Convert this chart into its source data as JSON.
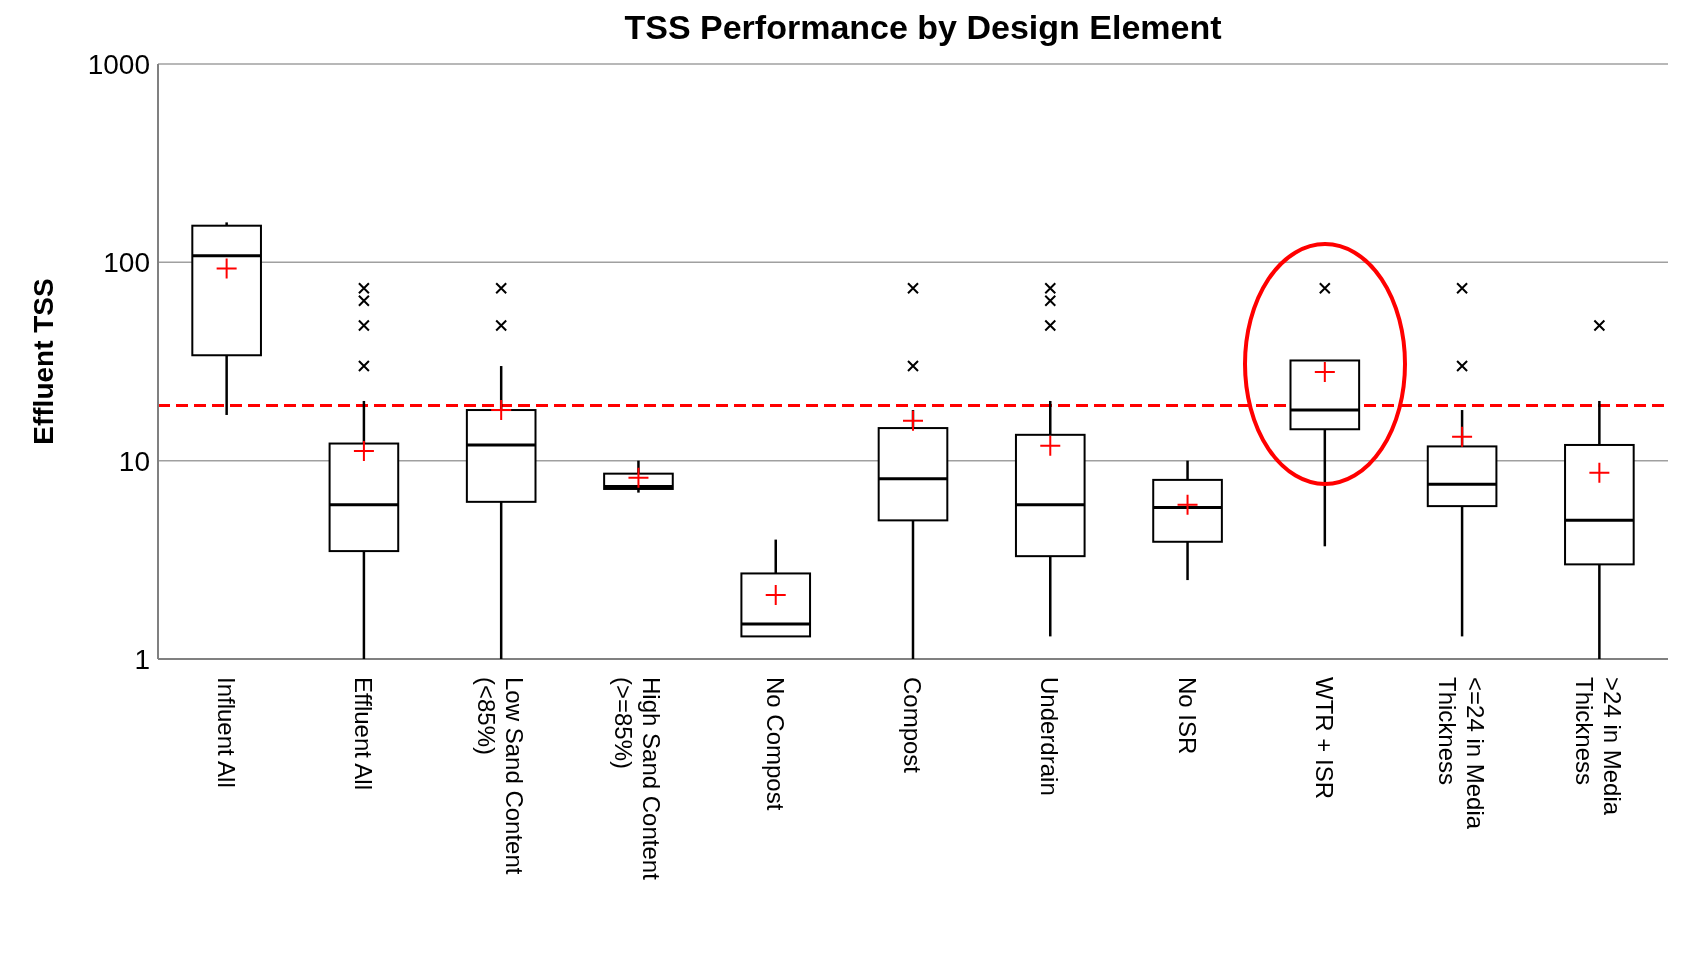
{
  "chart_data": {
    "type": "box",
    "title": "TSS Performance by Design Element",
    "ylabel": "Effluent TSS",
    "categories": [
      "Influent All",
      "Effluent All",
      "Low Sand Content (<85%)",
      "High Sand Content (>=85%)",
      "No Compost",
      "Compost",
      "Underdrain",
      "No ISR",
      "WTR + ISR",
      "<=24 in Media Thickness",
      ">24 in Media Thickness"
    ],
    "color": "#000000",
    "boxes": [
      {
        "low": 17,
        "q1": 34,
        "median": 108,
        "q3": 153,
        "high": 159,
        "mean": 93
      },
      {
        "low": 1,
        "q1": 3.5,
        "median": 6,
        "q3": 12.2,
        "high": 20,
        "mean": 11.2,
        "outliers": [
          30,
          48,
          64,
          74
        ]
      },
      {
        "low": 1,
        "q1": 6.2,
        "median": 12,
        "q3": 18,
        "high": 30,
        "mean": 18,
        "outliers": [
          48,
          74
        ]
      },
      {
        "low": 6.9,
        "q1": 7.2,
        "median": 7.4,
        "q3": 8.6,
        "high": 10,
        "mean": 8.2
      },
      {
        "low": 1.3,
        "q1": 1.3,
        "median": 1.5,
        "q3": 2.7,
        "high": 4,
        "mean": 2.1
      },
      {
        "low": 1,
        "q1": 5,
        "median": 8.1,
        "q3": 14.6,
        "high": 18,
        "mean": 15.9,
        "outliers": [
          30,
          74
        ]
      },
      {
        "low": 1.3,
        "q1": 3.3,
        "median": 6,
        "q3": 13.5,
        "high": 20,
        "mean": 11.9,
        "outliers": [
          48,
          64,
          74
        ]
      },
      {
        "low": 2.5,
        "q1": 3.9,
        "median": 5.8,
        "q3": 8,
        "high": 10,
        "mean": 6
      },
      {
        "low": 3.7,
        "q1": 14.4,
        "median": 18,
        "q3": 32,
        "high": 32,
        "mean": 28,
        "outliers": [
          74
        ]
      },
      {
        "low": 1.3,
        "q1": 5.9,
        "median": 7.6,
        "q3": 11.8,
        "high": 18,
        "mean": 13.2,
        "outliers": [
          30,
          74
        ]
      },
      {
        "low": 1,
        "q1": 3,
        "median": 5,
        "q3": 12,
        "high": 20,
        "mean": 8.7,
        "outliers": [
          48
        ]
      }
    ],
    "ylim": [
      1,
      1000
    ],
    "yticks": [
      1,
      10,
      100,
      1000
    ],
    "log": true,
    "grid": "y",
    "ref_lines": [
      {
        "axis": "y",
        "value": 19,
        "color": "#ff0000",
        "line_style": "dashed"
      }
    ]
  }
}
